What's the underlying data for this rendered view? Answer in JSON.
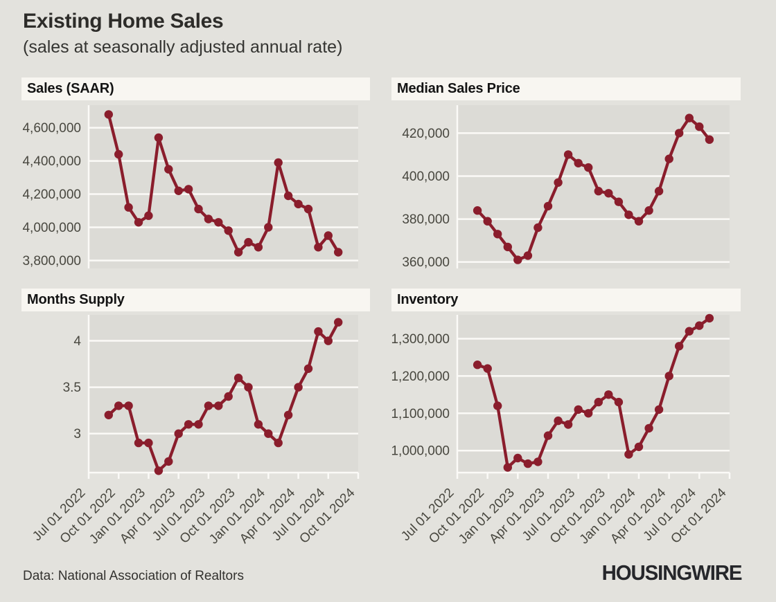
{
  "header": {
    "title": "Existing Home Sales",
    "subtitle": "(sales at seasonally adjusted annual rate)"
  },
  "footer": {
    "source": "Data: National Association of Realtors",
    "brand": "HOUSINGWIRE"
  },
  "colors": {
    "page_bg": "#e3e2dd",
    "plot_bg": "#dcdbd6",
    "strip_bg": "#f8f6f1",
    "grid": "#fbfaf7",
    "line": "#8a1d2c",
    "axis_text": "#48473f"
  },
  "chart_data": {
    "type": "line",
    "layout": "2x2-small-multiples",
    "marker": "circle",
    "grid": "horizontal",
    "legend": "none",
    "x": {
      "months": [
        "Sep 2022",
        "Oct 2022",
        "Nov 2022",
        "Dec 2022",
        "Jan 2023",
        "Feb 2023",
        "Mar 2023",
        "Apr 2023",
        "May 2023",
        "Jun 2023",
        "Jul 2023",
        "Aug 2023",
        "Sep 2023",
        "Oct 2023",
        "Nov 2023",
        "Dec 2023",
        "Jan 2024",
        "Feb 2024",
        "Mar 2024",
        "Apr 2024",
        "May 2024",
        "Jun 2024",
        "Jul 2024",
        "Aug 2024"
      ],
      "tick_labels": [
        "Jul 01 2022",
        "Oct 01 2022",
        "Jan 01 2023",
        "Apr 01 2023",
        "Jul 01 2023",
        "Oct 01 2023",
        "Jan 01 2024",
        "Apr 01 2024",
        "Jul 01 2024",
        "Oct 01 2024"
      ],
      "tick_month_offsets": [
        -2,
        1,
        4,
        7,
        10,
        13,
        16,
        19,
        22,
        25
      ],
      "domain_note": "x axis spans Jul 01 2022 to Oct 01 2024 (27 months); series runs Sep 2022 - Aug 2024"
    },
    "panels": [
      {
        "id": "sales",
        "title": "Sales (SAAR)",
        "values": [
          4680000,
          4440000,
          4120000,
          4030000,
          4070000,
          4540000,
          4350000,
          4220000,
          4230000,
          4110000,
          4050000,
          4030000,
          3980000,
          3850000,
          3910000,
          3880000,
          4000000,
          4390000,
          4190000,
          4140000,
          4110000,
          3880000,
          3950000,
          3850000
        ],
        "y_ticks": [
          3800000,
          4000000,
          4200000,
          4400000,
          4600000
        ],
        "y_tick_format": "comma",
        "ylim": [
          3752000,
          4736000
        ]
      },
      {
        "id": "median_price",
        "title": "Median Sales Price",
        "values": [
          384000,
          379000,
          373000,
          367000,
          361000,
          363000,
          376000,
          386000,
          397000,
          410000,
          406000,
          404000,
          393000,
          392000,
          388000,
          382000,
          379000,
          384000,
          393000,
          408000,
          420000,
          427000,
          423000,
          417000
        ],
        "y_ticks": [
          360000,
          380000,
          400000,
          420000
        ],
        "y_tick_format": "comma",
        "ylim": [
          357000,
          433000
        ]
      },
      {
        "id": "months_supply",
        "title": "Months Supply",
        "values": [
          3.2,
          3.3,
          3.3,
          2.9,
          2.9,
          2.6,
          2.7,
          3.0,
          3.1,
          3.1,
          3.3,
          3.3,
          3.4,
          3.6,
          3.5,
          3.1,
          3.0,
          2.9,
          3.2,
          3.5,
          3.7,
          4.1,
          4.0,
          4.2
        ],
        "y_ticks": [
          3,
          3.5,
          4
        ],
        "y_tick_format": "plain",
        "ylim": [
          2.58,
          4.28
        ]
      },
      {
        "id": "inventory",
        "title": "Inventory",
        "values": [
          1230000,
          1220000,
          1120000,
          955000,
          980000,
          965000,
          970000,
          1040000,
          1080000,
          1070000,
          1110000,
          1100000,
          1130000,
          1150000,
          1130000,
          990000,
          1010000,
          1060000,
          1110000,
          1200000,
          1280000,
          1320000,
          1335000,
          1355000
        ],
        "y_ticks": [
          1000000,
          1100000,
          1200000,
          1300000
        ],
        "y_tick_format": "comma",
        "ylim": [
          941000,
          1364000
        ]
      }
    ]
  }
}
